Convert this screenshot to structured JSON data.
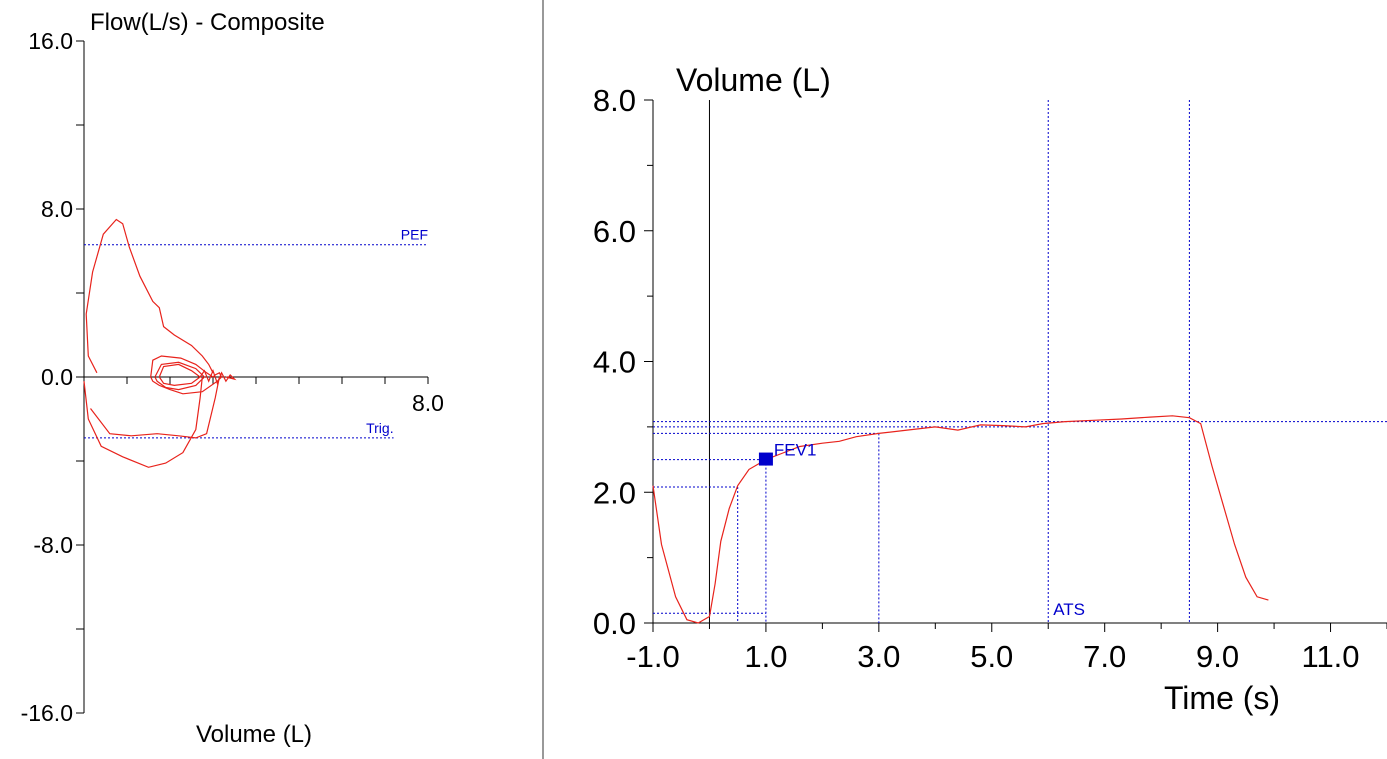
{
  "colors": {
    "curve": "#e8231c",
    "guide": "#0000cc",
    "axis": "#000000",
    "divider": "#999999"
  },
  "left_title": "Flow(L/s)  -  Composite",
  "left_xlabel": "Volume (L)",
  "right_ylabel": "Volume (L)",
  "right_xlabel": "Time (s)",
  "chart_data": [
    {
      "type": "line",
      "title": "Flow(L/s)  -  Composite",
      "xlabel": "Volume (L)",
      "ylabel": "Flow(L/s)",
      "xlim": [
        0,
        8
      ],
      "ylim": [
        -16,
        16
      ],
      "y_ticks": [
        "16.0",
        "8.0",
        "0.0",
        "-8.0",
        "-16.0"
      ],
      "x_tick_label": "8.0",
      "reference_lines": [
        {
          "label": "PEF",
          "y": 6.3
        },
        {
          "label": "Trig.",
          "y": -2.9
        }
      ],
      "series": [
        {
          "points": [
            [
              0.3,
              0.2
            ],
            [
              0.1,
              1.0
            ],
            [
              0.05,
              3.0
            ],
            [
              0.2,
              5.0
            ],
            [
              0.45,
              6.8
            ],
            [
              0.75,
              7.5
            ],
            [
              0.9,
              7.3
            ],
            [
              1.05,
              6.2
            ],
            [
              1.3,
              4.8
            ],
            [
              1.6,
              3.6
            ],
            [
              1.75,
              3.3
            ],
            [
              1.85,
              2.4
            ],
            [
              2.1,
              2.0
            ],
            [
              2.5,
              1.5
            ],
            [
              2.75,
              1.0
            ],
            [
              2.9,
              0.6
            ],
            [
              3.0,
              0.2
            ]
          ]
        },
        {
          "points": [
            [
              0.0,
              -0.2
            ],
            [
              0.1,
              -2.0
            ],
            [
              0.4,
              -3.3
            ],
            [
              0.9,
              -3.8
            ],
            [
              1.5,
              -4.3
            ],
            [
              1.9,
              -4.1
            ],
            [
              2.3,
              -3.6
            ],
            [
              2.6,
              -2.5
            ],
            [
              2.7,
              -1.0
            ],
            [
              2.75,
              0.0
            ]
          ]
        },
        {
          "points": [
            [
              0.15,
              -1.5
            ],
            [
              0.6,
              -2.7
            ],
            [
              1.1,
              -2.8
            ],
            [
              1.7,
              -2.7
            ],
            [
              2.2,
              -2.8
            ],
            [
              2.6,
              -2.9
            ],
            [
              2.85,
              -2.7
            ],
            [
              3.05,
              -1.0
            ],
            [
              3.15,
              0.0
            ]
          ]
        },
        {
          "points": [
            [
              1.55,
              0.0
            ],
            [
              1.6,
              0.8
            ],
            [
              1.8,
              1.0
            ],
            [
              2.25,
              0.9
            ],
            [
              2.6,
              0.6
            ],
            [
              2.85,
              0.2
            ],
            [
              3.0,
              0.0
            ],
            [
              3.05,
              0.1
            ],
            [
              3.15,
              0.2
            ],
            [
              3.2,
              0.0
            ],
            [
              3.1,
              -0.2
            ],
            [
              2.75,
              -0.7
            ],
            [
              2.3,
              -0.8
            ],
            [
              2.0,
              -0.6
            ],
            [
              1.75,
              -0.4
            ],
            [
              1.6,
              -0.2
            ],
            [
              1.55,
              0.0
            ]
          ]
        },
        {
          "points": [
            [
              1.65,
              0.0
            ],
            [
              1.8,
              0.6
            ],
            [
              2.2,
              0.7
            ],
            [
              2.6,
              0.4
            ],
            [
              2.8,
              0.0
            ],
            [
              2.6,
              -0.4
            ],
            [
              2.2,
              -0.6
            ],
            [
              1.9,
              -0.5
            ],
            [
              1.7,
              -0.2
            ],
            [
              1.65,
              0.0
            ]
          ]
        },
        {
          "points": [
            [
              1.75,
              0.0
            ],
            [
              1.85,
              0.5
            ],
            [
              2.2,
              0.6
            ],
            [
              2.5,
              0.3
            ],
            [
              2.7,
              0.0
            ],
            [
              2.5,
              -0.3
            ],
            [
              2.1,
              -0.4
            ],
            [
              1.85,
              -0.3
            ],
            [
              1.75,
              0.0
            ]
          ]
        },
        {
          "points": [
            [
              2.7,
              0.0
            ],
            [
              2.8,
              0.3
            ],
            [
              2.9,
              -0.2
            ],
            [
              3.0,
              0.3
            ],
            [
              3.1,
              -0.3
            ],
            [
              3.2,
              0.2
            ],
            [
              3.3,
              -0.2
            ],
            [
              3.4,
              0.1
            ],
            [
              3.5,
              -0.1
            ],
            [
              3.3,
              0.0
            ]
          ]
        }
      ]
    },
    {
      "type": "line",
      "xlabel": "Time (s)",
      "ylabel": "Volume (L)",
      "xlim": [
        -1,
        12
      ],
      "ylim": [
        0,
        8
      ],
      "x_ticks": [
        "-1.0",
        "1.0",
        "3.0",
        "5.0",
        "7.0",
        "9.0",
        "11.0"
      ],
      "y_ticks": [
        "0.0",
        "2.0",
        "4.0",
        "6.0",
        "8.0"
      ],
      "series": [
        {
          "points": [
            [
              -1.0,
              2.1
            ],
            [
              -0.85,
              1.2
            ],
            [
              -0.6,
              0.4
            ],
            [
              -0.4,
              0.05
            ],
            [
              -0.2,
              0.0
            ],
            [
              0.0,
              0.1
            ],
            [
              0.1,
              0.6
            ],
            [
              0.2,
              1.25
            ],
            [
              0.35,
              1.75
            ],
            [
              0.5,
              2.1
            ],
            [
              0.7,
              2.35
            ],
            [
              1.0,
              2.5
            ],
            [
              1.3,
              2.6
            ],
            [
              1.6,
              2.7
            ],
            [
              2.0,
              2.75
            ],
            [
              2.3,
              2.78
            ],
            [
              2.6,
              2.85
            ],
            [
              3.0,
              2.9
            ],
            [
              3.5,
              2.95
            ],
            [
              4.0,
              3.0
            ],
            [
              4.4,
              2.95
            ],
            [
              4.8,
              3.03
            ],
            [
              5.2,
              3.02
            ],
            [
              5.6,
              3.0
            ],
            [
              5.9,
              3.05
            ],
            [
              6.3,
              3.08
            ],
            [
              6.8,
              3.1
            ],
            [
              7.3,
              3.12
            ],
            [
              7.8,
              3.15
            ],
            [
              8.2,
              3.17
            ],
            [
              8.5,
              3.14
            ],
            [
              8.7,
              3.05
            ],
            [
              8.9,
              2.4
            ],
            [
              9.1,
              1.8
            ],
            [
              9.3,
              1.2
            ],
            [
              9.5,
              0.7
            ],
            [
              9.7,
              0.4
            ],
            [
              9.9,
              0.35
            ]
          ]
        }
      ],
      "cursor_x": 0.0,
      "reference_lines_h": [
        3.08,
        3.0,
        2.9,
        2.5,
        2.08,
        0.15
      ],
      "reference_lines_v": [
        0.5,
        1.0,
        3.0,
        6.0,
        8.5
      ],
      "annotations": [
        {
          "label": "FEV1",
          "x": 1.0,
          "y": 2.5
        },
        {
          "label": "ATS",
          "x": 6.0,
          "y": 0.0
        }
      ]
    }
  ]
}
